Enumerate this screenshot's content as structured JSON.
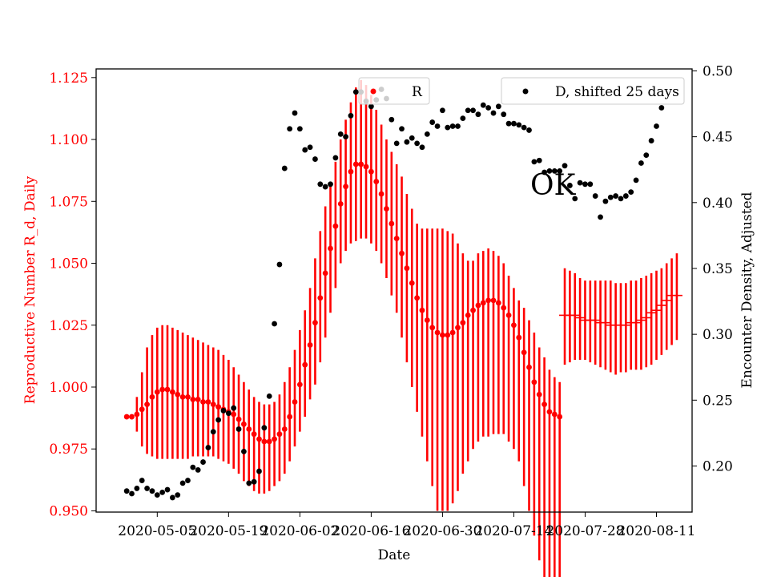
{
  "chart_data": {
    "type": "scatter",
    "title": "",
    "xlabel": "Date",
    "ylabel_left": "Reproductive Number R_d, Daily",
    "ylabel_right": "Encounter Density, Adjusted",
    "annotation": "OK",
    "x_ticks": [
      "2020-05-05",
      "2020-05-19",
      "2020-06-02",
      "2020-06-16",
      "2020-06-30",
      "2020-07-14",
      "2020-07-28",
      "2020-08-11"
    ],
    "y_left_ticks": [
      "0.950",
      "0.975",
      "1.000",
      "1.025",
      "1.050",
      "1.075",
      "1.100",
      "1.125"
    ],
    "y_right_ticks": [
      "0.20",
      "0.25",
      "0.30",
      "0.35",
      "0.40",
      "0.45",
      "0.50"
    ],
    "x_range": [
      "2020-04-23",
      "2020-08-18"
    ],
    "y_left_range": [
      0.9495,
      1.1285
    ],
    "y_right_range": [
      0.165,
      0.5015
    ],
    "grid": false,
    "legend_left_placement": "top-center",
    "legend_right_placement": "top-right",
    "colors": {
      "r": "#ff0000",
      "d": "#000000",
      "left_axis": "#ff0000",
      "right_axis": "#000000"
    },
    "series": [
      {
        "name": "R",
        "axis": "left",
        "marker": "dot",
        "start_date": "2020-04-29",
        "values": [
          0.988,
          0.988,
          0.989,
          0.991,
          0.993,
          0.996,
          0.998,
          0.999,
          0.999,
          0.998,
          0.997,
          0.996,
          0.996,
          0.995,
          0.995,
          0.994,
          0.994,
          0.993,
          0.992,
          0.991,
          0.99,
          0.989,
          0.987,
          0.985,
          0.983,
          0.981,
          0.979,
          0.978,
          0.978,
          0.979,
          0.981,
          0.983,
          0.988,
          0.994,
          1.001,
          1.009,
          1.017,
          1.026,
          1.036,
          1.046,
          1.056,
          1.065,
          1.074,
          1.081,
          1.087,
          1.09,
          1.09,
          1.089,
          1.087,
          1.083,
          1.078,
          1.072,
          1.066,
          1.06,
          1.054,
          1.048,
          1.042,
          1.036,
          1.031,
          1.027,
          1.024,
          1.022,
          1.021,
          1.021,
          1.022,
          1.024,
          1.026,
          1.029,
          1.031,
          1.033,
          1.034,
          1.035,
          1.035,
          1.034,
          1.032,
          1.029,
          1.025,
          1.02,
          1.014,
          1.008,
          1.002,
          0.997,
          0.993,
          0.99,
          0.989,
          0.988
        ],
        "err_low": [
          0.988,
          0.987,
          0.982,
          0.976,
          0.973,
          0.972,
          0.971,
          0.971,
          0.971,
          0.971,
          0.971,
          0.971,
          0.971,
          0.972,
          0.972,
          0.972,
          0.972,
          0.972,
          0.971,
          0.97,
          0.969,
          0.967,
          0.965,
          0.962,
          0.96,
          0.958,
          0.957,
          0.957,
          0.958,
          0.96,
          0.962,
          0.965,
          0.97,
          0.976,
          0.982,
          0.988,
          0.995,
          1.001,
          1.01,
          1.02,
          1.03,
          1.04,
          1.05,
          1.055,
          1.058,
          1.059,
          1.06,
          1.06,
          1.058,
          1.055,
          1.05,
          1.044,
          1.037,
          1.03,
          1.02,
          1.01,
          1.0,
          0.99,
          0.98,
          0.97,
          0.96,
          0.95,
          0.95,
          0.95,
          0.953,
          0.958,
          0.965,
          0.97,
          0.975,
          0.978,
          0.98,
          0.98,
          0.981,
          0.981,
          0.981,
          0.978,
          0.975,
          0.97,
          0.96,
          0.95,
          0.94,
          0.93,
          0.922,
          0.917,
          0.914,
          0.914
        ],
        "err_high": [
          0.988,
          0.989,
          0.996,
          1.006,
          1.016,
          1.021,
          1.024,
          1.025,
          1.025,
          1.024,
          1.023,
          1.022,
          1.021,
          1.02,
          1.019,
          1.018,
          1.017,
          1.016,
          1.015,
          1.013,
          1.011,
          1.008,
          1.005,
          1.002,
          0.999,
          0.996,
          0.994,
          0.993,
          0.993,
          0.994,
          0.997,
          1.002,
          1.008,
          1.015,
          1.023,
          1.031,
          1.04,
          1.052,
          1.063,
          1.073,
          1.082,
          1.091,
          1.1,
          1.108,
          1.115,
          1.121,
          1.124,
          1.122,
          1.118,
          1.112,
          1.106,
          1.1,
          1.095,
          1.09,
          1.085,
          1.078,
          1.072,
          1.066,
          1.064,
          1.064,
          1.064,
          1.064,
          1.064,
          1.063,
          1.062,
          1.058,
          1.054,
          1.051,
          1.051,
          1.054,
          1.055,
          1.056,
          1.055,
          1.053,
          1.05,
          1.045,
          1.04,
          1.035,
          1.032,
          1.027,
          1.022,
          1.016,
          1.012,
          1.007,
          1.004,
          1.002
        ]
      },
      {
        "name": "R",
        "axis": "left",
        "marker": "hline",
        "start_date": "2020-07-24",
        "values": [
          1.029,
          1.029,
          1.029,
          1.028,
          1.027,
          1.027,
          1.027,
          1.026,
          1.026,
          1.025,
          1.025,
          1.025,
          1.025,
          1.026,
          1.026,
          1.027,
          1.028,
          1.03,
          1.031,
          1.033,
          1.035,
          1.037,
          1.037
        ],
        "err_low": [
          1.009,
          1.01,
          1.011,
          1.011,
          1.011,
          1.01,
          1.009,
          1.008,
          1.007,
          1.006,
          1.005,
          1.006,
          1.006,
          1.007,
          1.007,
          1.007,
          1.008,
          1.009,
          1.011,
          1.013,
          1.015,
          1.017,
          1.019
        ],
        "err_high": [
          1.048,
          1.047,
          1.046,
          1.044,
          1.043,
          1.043,
          1.043,
          1.043,
          1.043,
          1.043,
          1.042,
          1.042,
          1.042,
          1.043,
          1.043,
          1.044,
          1.045,
          1.046,
          1.047,
          1.048,
          1.05,
          1.052,
          1.054
        ]
      },
      {
        "name": "D, shifted 25 days",
        "axis": "right",
        "marker": "dot",
        "points": [
          [
            "2020-04-29",
            0.181
          ],
          [
            "2020-04-30",
            0.179
          ],
          [
            "2020-05-01",
            0.183
          ],
          [
            "2020-05-02",
            0.189
          ],
          [
            "2020-05-03",
            0.183
          ],
          [
            "2020-05-04",
            0.181
          ],
          [
            "2020-05-05",
            0.178
          ],
          [
            "2020-05-06",
            0.18
          ],
          [
            "2020-05-07",
            0.182
          ],
          [
            "2020-05-08",
            0.176
          ],
          [
            "2020-05-09",
            0.178
          ],
          [
            "2020-05-10",
            0.187
          ],
          [
            "2020-05-11",
            0.189
          ],
          [
            "2020-05-12",
            0.199
          ],
          [
            "2020-05-13",
            0.197
          ],
          [
            "2020-05-14",
            0.203
          ],
          [
            "2020-05-15",
            0.214
          ],
          [
            "2020-05-16",
            0.226
          ],
          [
            "2020-05-17",
            0.235
          ],
          [
            "2020-05-18",
            0.242
          ],
          [
            "2020-05-19",
            0.24
          ],
          [
            "2020-05-20",
            0.244
          ],
          [
            "2020-05-21",
            0.228
          ],
          [
            "2020-05-22",
            0.211
          ],
          [
            "2020-05-23",
            0.187
          ],
          [
            "2020-05-24",
            0.188
          ],
          [
            "2020-05-25",
            0.196
          ],
          [
            "2020-05-26",
            0.229
          ],
          [
            "2020-05-27",
            0.253
          ],
          [
            "2020-05-28",
            0.308
          ],
          [
            "2020-05-29",
            0.353
          ],
          [
            "2020-05-30",
            0.426
          ],
          [
            "2020-05-31",
            0.456
          ],
          [
            "2020-06-01",
            0.468
          ],
          [
            "2020-06-02",
            0.456
          ],
          [
            "2020-06-03",
            0.44
          ],
          [
            "2020-06-04",
            0.442
          ],
          [
            "2020-06-05",
            0.433
          ],
          [
            "2020-06-06",
            0.414
          ],
          [
            "2020-06-07",
            0.412
          ],
          [
            "2020-06-08",
            0.414
          ],
          [
            "2020-06-09",
            0.434
          ],
          [
            "2020-06-10",
            0.452
          ],
          [
            "2020-06-11",
            0.45
          ],
          [
            "2020-06-12",
            0.466
          ],
          [
            "2020-06-13",
            0.484
          ],
          [
            "2020-06-14",
            0.484
          ],
          [
            "2020-06-15",
            0.477
          ],
          [
            "2020-06-16",
            0.473
          ],
          [
            "2020-06-17",
            0.478
          ],
          [
            "2020-06-18",
            0.486
          ],
          [
            "2020-06-19",
            0.479
          ],
          [
            "2020-06-20",
            0.463
          ],
          [
            "2020-06-21",
            0.445
          ],
          [
            "2020-06-22",
            0.456
          ],
          [
            "2020-06-23",
            0.446
          ],
          [
            "2020-06-24",
            0.449
          ],
          [
            "2020-06-25",
            0.445
          ],
          [
            "2020-06-26",
            0.442
          ],
          [
            "2020-06-27",
            0.452
          ],
          [
            "2020-06-28",
            0.461
          ],
          [
            "2020-06-29",
            0.458
          ],
          [
            "2020-06-30",
            0.47
          ],
          [
            "2020-07-01",
            0.457
          ],
          [
            "2020-07-02",
            0.458
          ],
          [
            "2020-07-03",
            0.458
          ],
          [
            "2020-07-04",
            0.464
          ],
          [
            "2020-07-05",
            0.47
          ],
          [
            "2020-07-06",
            0.47
          ],
          [
            "2020-07-07",
            0.467
          ],
          [
            "2020-07-08",
            0.474
          ],
          [
            "2020-07-09",
            0.472
          ],
          [
            "2020-07-10",
            0.468
          ],
          [
            "2020-07-11",
            0.473
          ],
          [
            "2020-07-12",
            0.467
          ],
          [
            "2020-07-13",
            0.46
          ],
          [
            "2020-07-14",
            0.46
          ],
          [
            "2020-07-15",
            0.459
          ],
          [
            "2020-07-16",
            0.457
          ],
          [
            "2020-07-17",
            0.455
          ],
          [
            "2020-07-18",
            0.431
          ],
          [
            "2020-07-19",
            0.432
          ],
          [
            "2020-07-20",
            0.423
          ],
          [
            "2020-07-21",
            0.424
          ],
          [
            "2020-07-22",
            0.424
          ],
          [
            "2020-07-23",
            0.424
          ],
          [
            "2020-07-24",
            0.428
          ],
          [
            "2020-07-25",
            0.413
          ],
          [
            "2020-07-26",
            0.403
          ],
          [
            "2020-07-27",
            0.415
          ],
          [
            "2020-07-28",
            0.414
          ],
          [
            "2020-07-29",
            0.414
          ],
          [
            "2020-07-30",
            0.405
          ],
          [
            "2020-07-31",
            0.389
          ],
          [
            "2020-08-01",
            0.401
          ],
          [
            "2020-08-02",
            0.404
          ],
          [
            "2020-08-03",
            0.405
          ],
          [
            "2020-08-04",
            0.403
          ],
          [
            "2020-08-05",
            0.405
          ],
          [
            "2020-08-06",
            0.408
          ],
          [
            "2020-08-07",
            0.417
          ],
          [
            "2020-08-08",
            0.43
          ],
          [
            "2020-08-09",
            0.436
          ],
          [
            "2020-08-10",
            0.447
          ],
          [
            "2020-08-11",
            0.458
          ],
          [
            "2020-08-12",
            0.472
          ]
        ]
      }
    ]
  }
}
